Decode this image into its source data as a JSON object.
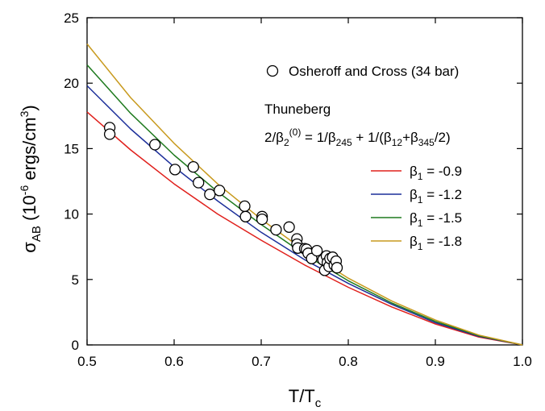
{
  "chart_data": {
    "type": "line",
    "title": "",
    "xlabel": {
      "main": "T/T",
      "sub": "c"
    },
    "ylabel": {
      "sym": "σ",
      "sub": "AB",
      "open": " (10",
      "sup": "-6",
      "unit": " ergs/cm",
      "unit_sup": "3",
      "close": ")"
    },
    "xlim": [
      0.5,
      1.0
    ],
    "ylim": [
      0,
      25
    ],
    "x_ticks": [
      0.5,
      0.6,
      0.7,
      0.8,
      0.9,
      1.0
    ],
    "x_tick_labels": [
      "0.5",
      "0.6",
      "0.7",
      "0.8",
      "0.9",
      "1.0"
    ],
    "y_ticks": [
      0,
      5,
      10,
      15,
      20,
      25
    ],
    "y_tick_labels": [
      "0",
      "5",
      "10",
      "15",
      "20",
      "25"
    ],
    "grid": false,
    "legend_position": "top-right",
    "x": [
      0.5,
      0.55,
      0.6,
      0.65,
      0.7,
      0.75,
      0.8,
      0.85,
      0.9,
      0.95,
      1.0
    ],
    "series": [
      {
        "name": "β₁ = -0.9",
        "label_sym": "β",
        "label_sub": "1",
        "label_rest": " = -0.9",
        "color": "#e0201c",
        "values": [
          17.8,
          14.9,
          12.3,
          10.0,
          8.0,
          6.1,
          4.4,
          2.9,
          1.6,
          0.6,
          0.0
        ]
      },
      {
        "name": "β₁ = -1.2",
        "label_sym": "β",
        "label_sub": "1",
        "label_rest": " = -1.2",
        "color": "#1c2f9a",
        "values": [
          19.8,
          16.5,
          13.6,
          11.0,
          8.6,
          6.5,
          4.7,
          3.1,
          1.7,
          0.65,
          0.0
        ]
      },
      {
        "name": "β₁ = -1.5",
        "label_sym": "β",
        "label_sub": "1",
        "label_rest": " = -1.5",
        "color": "#1e7a1e",
        "values": [
          21.4,
          17.7,
          14.5,
          11.7,
          9.2,
          6.9,
          4.9,
          3.2,
          1.8,
          0.7,
          0.0
        ]
      },
      {
        "name": "β₁ = -1.8",
        "label_sym": "β",
        "label_sub": "1",
        "label_rest": " = -1.8",
        "color": "#c89a1e",
        "values": [
          23.0,
          18.9,
          15.4,
          12.3,
          9.6,
          7.2,
          5.1,
          3.35,
          1.9,
          0.75,
          0.0
        ]
      }
    ],
    "scatter": {
      "name": "Osheroff and Cross (34 bar)",
      "marker": "open-circle",
      "points": [
        [
          0.526,
          16.6
        ],
        [
          0.526,
          16.1
        ],
        [
          0.578,
          15.3
        ],
        [
          0.601,
          13.4
        ],
        [
          0.622,
          13.6
        ],
        [
          0.628,
          12.4
        ],
        [
          0.641,
          11.5
        ],
        [
          0.652,
          11.8
        ],
        [
          0.681,
          10.6
        ],
        [
          0.682,
          9.8
        ],
        [
          0.701,
          9.8
        ],
        [
          0.701,
          9.6
        ],
        [
          0.717,
          8.8
        ],
        [
          0.732,
          9.0
        ],
        [
          0.741,
          8.1
        ],
        [
          0.741,
          7.7
        ],
        [
          0.742,
          7.4
        ],
        [
          0.75,
          7.35
        ],
        [
          0.752,
          7.3
        ],
        [
          0.754,
          7.0
        ],
        [
          0.758,
          6.6
        ],
        [
          0.764,
          7.2
        ],
        [
          0.771,
          6.5
        ],
        [
          0.773,
          5.7
        ],
        [
          0.775,
          6.8
        ],
        [
          0.776,
          6.3
        ],
        [
          0.778,
          6.0
        ],
        [
          0.779,
          6.6
        ],
        [
          0.782,
          6.7
        ],
        [
          0.784,
          6.1
        ],
        [
          0.786,
          6.4
        ],
        [
          0.787,
          5.9
        ]
      ]
    },
    "annotation": {
      "line1": "Thuneberg",
      "line2": {
        "a": "2/β",
        "a_sub": "2",
        "a_sup": "(0)",
        "b": " = 1/β",
        "b_sub": "245",
        "c": " + 1/(β",
        "c_sub": "12",
        "d": "+β",
        "d_sub": "345",
        "e": "/2)"
      }
    }
  }
}
